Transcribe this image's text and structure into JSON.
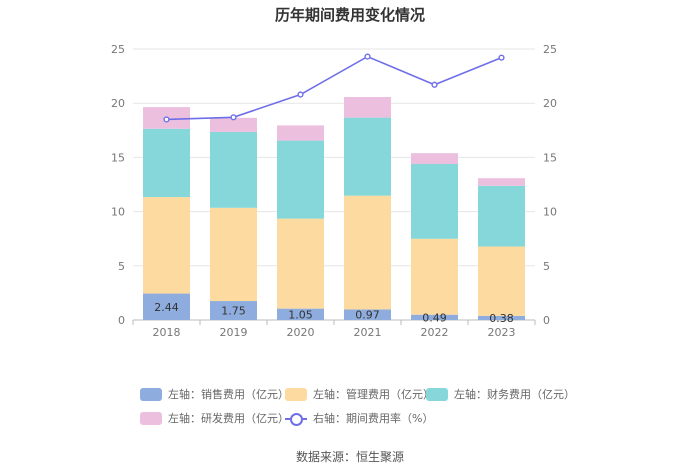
{
  "chart_data": {
    "type": "bar",
    "stacked": true,
    "title": "历年期间费用变化情况",
    "categories": [
      "2018",
      "2019",
      "2020",
      "2021",
      "2022",
      "2023"
    ],
    "series": [
      {
        "name": "左轴：销售费用（亿元）",
        "axis": "left",
        "type": "bar",
        "color": "#8eadde",
        "values": [
          2.44,
          1.75,
          1.05,
          0.97,
          0.49,
          0.38
        ],
        "labels": [
          "2.44",
          "1.75",
          "1.05",
          "0.97",
          "0.49",
          "0.38"
        ]
      },
      {
        "name": "左轴：管理费用（亿元）",
        "axis": "left",
        "type": "bar",
        "color": "#fddba0",
        "values": [
          8.9,
          8.6,
          8.3,
          10.5,
          7.0,
          6.4
        ]
      },
      {
        "name": "左轴：财务费用（亿元）",
        "axis": "left",
        "type": "bar",
        "color": "#86d7d9",
        "values": [
          6.3,
          7.0,
          7.2,
          7.2,
          6.9,
          5.6
        ]
      },
      {
        "name": "左轴：研发费用（亿元）",
        "axis": "left",
        "type": "bar",
        "color": "#ecbfdf",
        "values": [
          2.0,
          1.3,
          1.4,
          1.9,
          1.0,
          0.7
        ]
      },
      {
        "name": "右轴：期间费用率（%）",
        "axis": "right",
        "type": "line",
        "color": "#6e6fe8",
        "values": [
          18.5,
          18.7,
          20.8,
          24.3,
          21.7,
          24.2
        ]
      }
    ],
    "left_axis": {
      "min": 0,
      "max": 25,
      "ticks": [
        "0",
        "5",
        "10",
        "15",
        "20",
        "25"
      ]
    },
    "right_axis": {
      "min": 0,
      "max": 25,
      "ticks": [
        "0",
        "5",
        "10",
        "15",
        "20",
        "25"
      ]
    },
    "grid": true,
    "legend_position": "bottom"
  },
  "source": "数据来源：恒生聚源"
}
